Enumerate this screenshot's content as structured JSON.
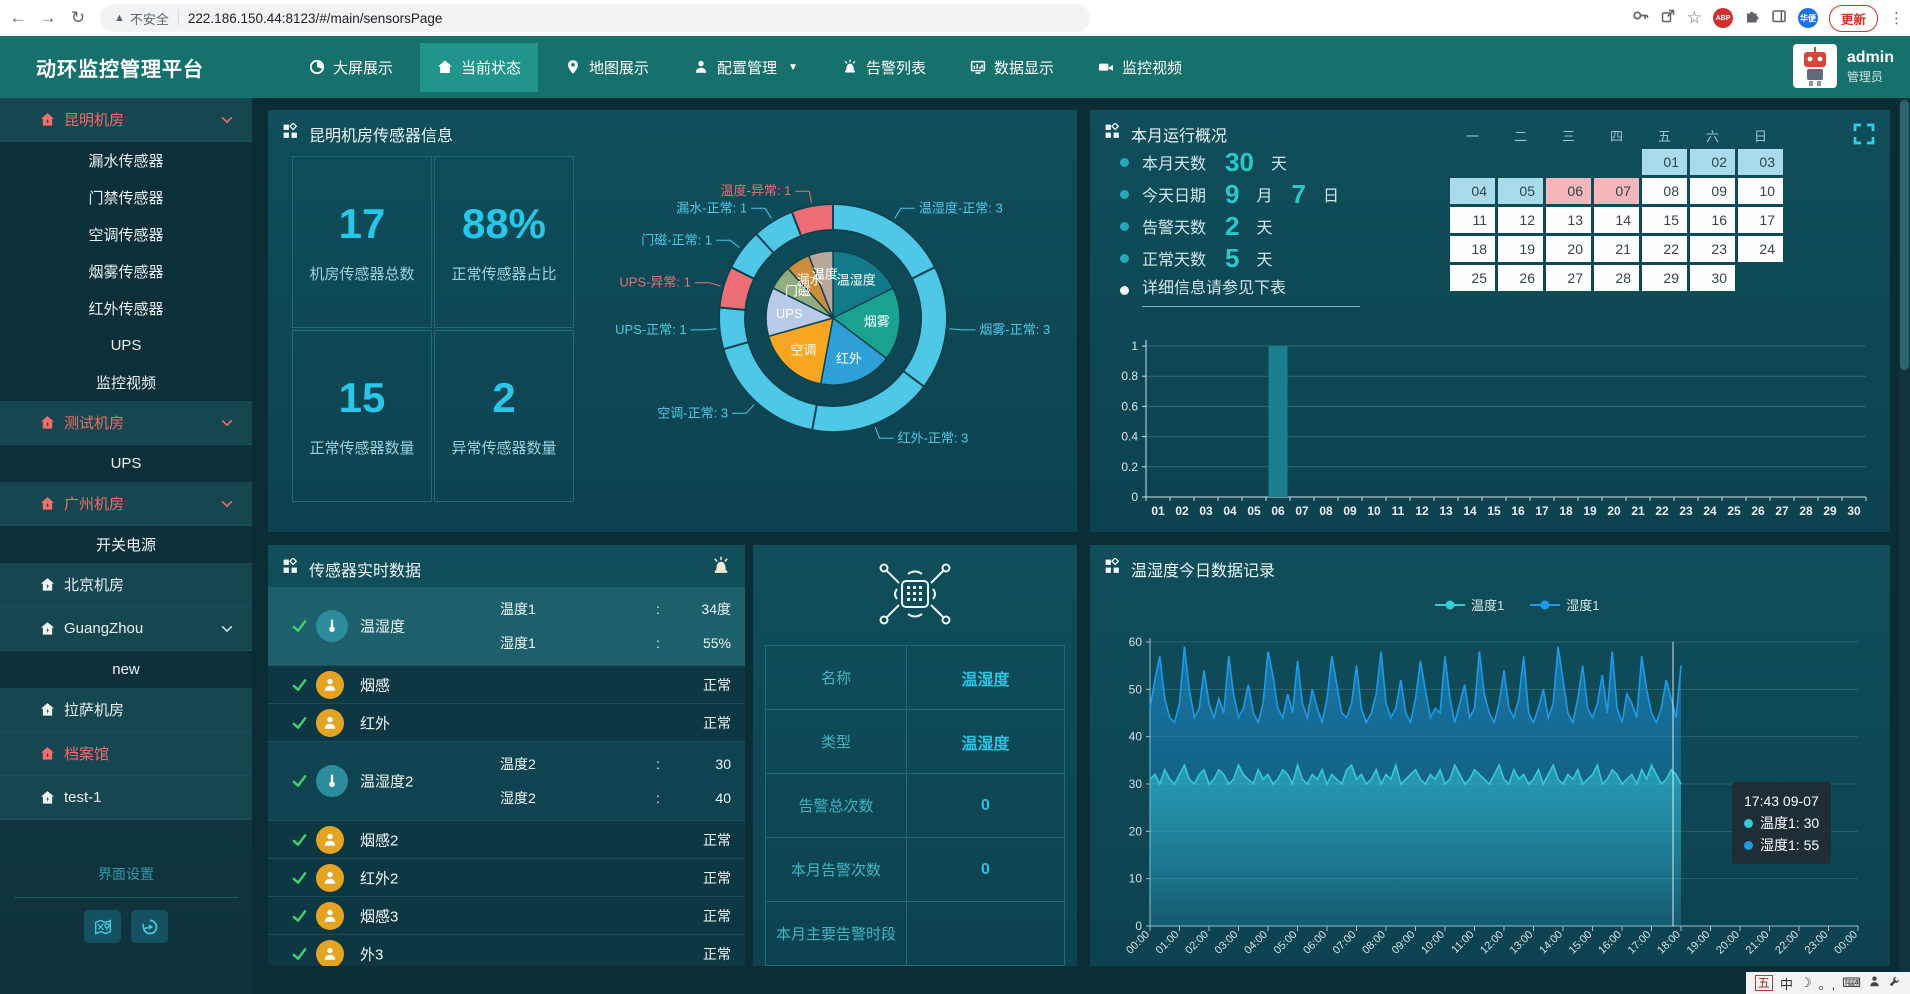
{
  "browser": {
    "back": "←",
    "forward": "→",
    "reload": "↻",
    "warning": "▲",
    "not_secure": "不安全",
    "url": "222.186.150.44:8123/#/main/sensorsPage",
    "star": "☆",
    "abp": "ABP",
    "lang": "华便",
    "update": "更新",
    "menu": "⋮"
  },
  "nav": {
    "title": "动环监控管理平台",
    "items": [
      {
        "label": "大屏展示",
        "icon": "pie"
      },
      {
        "label": "当前状态",
        "icon": "home",
        "active": true
      },
      {
        "label": "地图展示",
        "icon": "pin"
      },
      {
        "label": "配置管理",
        "icon": "person",
        "caret": true
      },
      {
        "label": "告警列表",
        "icon": "siren"
      },
      {
        "label": "数据显示",
        "icon": "chart"
      },
      {
        "label": "监控视频",
        "icon": "camera"
      }
    ],
    "user": {
      "name": "admin",
      "role": "管理员"
    }
  },
  "sidebar": {
    "groups": [
      {
        "label": "昆明机房",
        "alert": true,
        "chevron": true,
        "children": [
          "漏水传感器",
          "门禁传感器",
          "空调传感器",
          "烟雾传感器",
          "红外传感器",
          "UPS",
          "监控视频"
        ]
      },
      {
        "label": "测试机房",
        "alert": true,
        "chevron": true,
        "children": [
          "UPS"
        ]
      },
      {
        "label": "广州机房",
        "alert": true,
        "chevron": true,
        "children": [
          "开关电源"
        ]
      },
      {
        "label": "北京机房",
        "alert": false,
        "children": []
      },
      {
        "label": "GuangZhou",
        "alert": false,
        "chevron": true,
        "children": [
          "new"
        ]
      },
      {
        "label": "拉萨机房",
        "alert": false,
        "children": []
      },
      {
        "label": "档案馆",
        "alert": true,
        "children": []
      },
      {
        "label": "test-1",
        "alert": false,
        "children": []
      }
    ],
    "footer_label": "界面设置"
  },
  "panels": {
    "sensor_info": {
      "title": "昆明机房传感器信息",
      "stats": [
        {
          "value": "17",
          "label": "机房传感器总数"
        },
        {
          "value": "88%",
          "label": "正常传感器占比"
        },
        {
          "value": "15",
          "label": "正常传感器数量"
        },
        {
          "value": "2",
          "label": "异常传感器数量"
        }
      ]
    },
    "month_overview": {
      "title": "本月运行概况",
      "bullets": [
        [
          {
            "t": "label",
            "v": "本月天数"
          },
          {
            "t": "num",
            "v": "30"
          },
          {
            "t": "label",
            "v": "天"
          }
        ],
        [
          {
            "t": "label",
            "v": "今天日期"
          },
          {
            "t": "num",
            "v": "9"
          },
          {
            "t": "label",
            "v": "月"
          },
          {
            "t": "num",
            "v": "7"
          },
          {
            "t": "label",
            "v": "日"
          }
        ],
        [
          {
            "t": "label",
            "v": "告警天数"
          },
          {
            "t": "num",
            "v": "2"
          },
          {
            "t": "label",
            "v": "天"
          }
        ],
        [
          {
            "t": "label",
            "v": "正常天数"
          },
          {
            "t": "num",
            "v": "5"
          },
          {
            "t": "label",
            "v": "天"
          }
        ],
        [
          {
            "t": "link",
            "v": "详细信息请参见下表"
          }
        ]
      ],
      "calendar": {
        "headers": [
          "一",
          "二",
          "三",
          "四",
          "五",
          "六",
          "日"
        ],
        "colors": {
          "normal": "#aadbea",
          "alarm": "#f4b6ba",
          "default": "#fdfdfd"
        },
        "weeks": [
          [
            {
              "d": "",
              "s": "e"
            },
            {
              "d": "",
              "s": "e"
            },
            {
              "d": "",
              "s": "e"
            },
            {
              "d": "",
              "s": "e"
            },
            {
              "d": "01",
              "s": "n"
            },
            {
              "d": "02",
              "s": "n"
            },
            {
              "d": "03",
              "s": "n"
            }
          ],
          [
            {
              "d": "04",
              "s": "n"
            },
            {
              "d": "05",
              "s": "n"
            },
            {
              "d": "06",
              "s": "a"
            },
            {
              "d": "07",
              "s": "a"
            },
            {
              "d": "08",
              "s": "d"
            },
            {
              "d": "09",
              "s": "d"
            },
            {
              "d": "10",
              "s": "d"
            }
          ],
          [
            {
              "d": "11",
              "s": "d"
            },
            {
              "d": "12",
              "s": "d"
            },
            {
              "d": "13",
              "s": "d"
            },
            {
              "d": "14",
              "s": "d"
            },
            {
              "d": "15",
              "s": "d"
            },
            {
              "d": "16",
              "s": "d"
            },
            {
              "d": "17",
              "s": "d"
            }
          ],
          [
            {
              "d": "18",
              "s": "d"
            },
            {
              "d": "19",
              "s": "d"
            },
            {
              "d": "20",
              "s": "d"
            },
            {
              "d": "21",
              "s": "d"
            },
            {
              "d": "22",
              "s": "d"
            },
            {
              "d": "23",
              "s": "d"
            },
            {
              "d": "24",
              "s": "d"
            }
          ],
          [
            {
              "d": "25",
              "s": "d"
            },
            {
              "d": "26",
              "s": "d"
            },
            {
              "d": "27",
              "s": "d"
            },
            {
              "d": "28",
              "s": "d"
            },
            {
              "d": "29",
              "s": "d"
            },
            {
              "d": "30",
              "s": "d"
            },
            {
              "d": "",
              "s": "e"
            }
          ]
        ]
      }
    },
    "realtime": {
      "title": "传感器实时数据",
      "rows": [
        {
          "name": "温湿度",
          "icon": "thermo",
          "highlight": true,
          "readings": [
            {
              "label": "温度1",
              "value": "34度"
            },
            {
              "label": "湿度1",
              "value": "55%"
            }
          ]
        },
        {
          "name": "烟感",
          "icon": "person",
          "status": "正常"
        },
        {
          "name": "红外",
          "icon": "person",
          "status": "正常"
        },
        {
          "name": "温湿度2",
          "icon": "thermo",
          "readings": [
            {
              "label": "温度2",
              "value": "30"
            },
            {
              "label": "湿度2",
              "value": "40"
            }
          ]
        },
        {
          "name": "烟感2",
          "icon": "person",
          "status": "正常"
        },
        {
          "name": "红外2",
          "icon": "person",
          "status": "正常"
        },
        {
          "name": "烟感3",
          "icon": "person",
          "status": "正常"
        },
        {
          "name": "外3",
          "icon": "person",
          "status": "正常"
        }
      ]
    },
    "detail": {
      "rows": [
        {
          "label": "名称",
          "value": "温湿度"
        },
        {
          "label": "类型",
          "value": "温湿度"
        },
        {
          "label": "告警总次数",
          "value": "0"
        },
        {
          "label": "本月告警次数",
          "value": "0"
        },
        {
          "label": "本月主要告警时段",
          "value": ""
        }
      ]
    },
    "today": {
      "title": "温湿度今日数据记录",
      "tooltip": {
        "time": "17:43 09-07",
        "items": [
          {
            "name": "温度1",
            "value": "30",
            "color": "#38c8d8"
          },
          {
            "name": "湿度1",
            "value": "55",
            "color": "#1f9ae8"
          }
        ]
      }
    }
  },
  "ime": [
    "五",
    "中",
    "☽",
    "。,",
    "⌨"
  ],
  "chart_data": [
    {
      "id": "sensor_type_donut",
      "type": "pie",
      "title": "昆明机房传感器信息",
      "inner_slices": [
        {
          "name": "温湿度",
          "value": 3,
          "color": "#137a8a"
        },
        {
          "name": "烟雾",
          "value": 3,
          "color": "#18a28f"
        },
        {
          "name": "红外",
          "value": 3,
          "color": "#2f9fd8"
        },
        {
          "name": "空调",
          "value": 3,
          "color": "#f6a620"
        },
        {
          "name": "UPS",
          "value": 2,
          "color": "#b9c9e8"
        },
        {
          "name": "门磁",
          "value": 1,
          "color": "#94ad7e"
        },
        {
          "name": "漏水",
          "value": 1,
          "color": "#cd8d3a"
        },
        {
          "name": "温度",
          "value": 1,
          "color": "#b8a79a"
        }
      ],
      "outer_ring": [
        {
          "label": "温湿度-正常: 3",
          "value": 3,
          "status": "normal"
        },
        {
          "label": "烟雾-正常: 3",
          "value": 3,
          "status": "normal"
        },
        {
          "label": "红外-正常: 3",
          "value": 3,
          "status": "normal"
        },
        {
          "label": "空调-正常: 3",
          "value": 3,
          "status": "normal"
        },
        {
          "label": "UPS-正常: 1",
          "value": 1,
          "status": "normal"
        },
        {
          "label": "UPS-异常: 1",
          "value": 1,
          "status": "abnormal"
        },
        {
          "label": "门磁-正常: 1",
          "value": 1,
          "status": "normal"
        },
        {
          "label": "漏水-正常: 1",
          "value": 1,
          "status": "normal"
        },
        {
          "label": "温度-异常: 1",
          "value": 1,
          "status": "abnormal"
        }
      ],
      "ring_colors": {
        "normal": "#4fc8e8",
        "abnormal": "#ee6e76"
      }
    },
    {
      "id": "month_alarm_bars",
      "type": "bar",
      "categories": [
        "01",
        "02",
        "03",
        "04",
        "05",
        "06",
        "07",
        "08",
        "09",
        "10",
        "11",
        "12",
        "13",
        "14",
        "15",
        "16",
        "17",
        "18",
        "19",
        "20",
        "21",
        "22",
        "23",
        "24",
        "25",
        "26",
        "27",
        "28",
        "29",
        "30"
      ],
      "values": [
        0,
        0,
        0,
        0,
        0,
        1,
        0,
        0,
        0,
        0,
        0,
        0,
        0,
        0,
        0,
        0,
        0,
        0,
        0,
        0,
        0,
        0,
        0,
        0,
        0,
        0,
        0,
        0,
        0,
        0
      ],
      "ylim": [
        0,
        1
      ],
      "yticks": [
        1,
        0.8,
        0.6,
        0.4,
        0.2,
        0
      ],
      "bar_color": "#1a7f8e"
    },
    {
      "id": "today_temp_humidity",
      "type": "line",
      "interval_minutes": 10,
      "start": "00:00",
      "end": "18:00",
      "ylim": [
        0,
        60
      ],
      "yticks": [
        0,
        10,
        20,
        30,
        40,
        50,
        60
      ],
      "x_tick_labels": [
        "00:00",
        "01:00",
        "02:00",
        "03:00",
        "04:00",
        "05:00",
        "06:00",
        "07:00",
        "08:00",
        "09:00",
        "10:00",
        "11:00",
        "12:00",
        "13:00",
        "14:00",
        "15:00",
        "16:00",
        "17:00",
        "18:00",
        "19:00",
        "20:00",
        "21:00",
        "22:00",
        "23:00",
        "00:00"
      ],
      "series": [
        {
          "name": "温度1",
          "color": "#38c8d8",
          "values": [
            31,
            32,
            30,
            33,
            31,
            30,
            32,
            34,
            31,
            30,
            32,
            33,
            30,
            31,
            33,
            32,
            30,
            31,
            34,
            32,
            31,
            30,
            33,
            31,
            32,
            30,
            31,
            33,
            32,
            30,
            34,
            31,
            30,
            32,
            31,
            33,
            30,
            32,
            31,
            30,
            33,
            34,
            31,
            32,
            30,
            31,
            33,
            30,
            32,
            31,
            34,
            30,
            31,
            32,
            33,
            31,
            30,
            32,
            31,
            33,
            30,
            31,
            34,
            32,
            30,
            31,
            33,
            32,
            31,
            30,
            32,
            34,
            31,
            30,
            33,
            31,
            32,
            30,
            31,
            33,
            30,
            32,
            34,
            31,
            30,
            32,
            31,
            33,
            30,
            31,
            32,
            34,
            30,
            31,
            33,
            32,
            30,
            31,
            32,
            30,
            33,
            31,
            34,
            32,
            30,
            31,
            33,
            32,
            30
          ]
        },
        {
          "name": "湿度1",
          "color": "#1f9ae8",
          "values": [
            46,
            52,
            57,
            48,
            44,
            43,
            47,
            59,
            50,
            44,
            46,
            54,
            47,
            44,
            48,
            45,
            57,
            49,
            44,
            46,
            51,
            45,
            43,
            47,
            58,
            53,
            46,
            44,
            49,
            45,
            56,
            47,
            44,
            50,
            46,
            43,
            48,
            57,
            51,
            45,
            44,
            47,
            55,
            46,
            43,
            45,
            49,
            58,
            47,
            44,
            46,
            52,
            45,
            43,
            48,
            56,
            50,
            44,
            46,
            45,
            57,
            48,
            43,
            47,
            51,
            44,
            46,
            58,
            49,
            45,
            43,
            47,
            54,
            46,
            44,
            48,
            57,
            45,
            43,
            46,
            50,
            44,
            47,
            59,
            52,
            45,
            43,
            48,
            55,
            46,
            44,
            47,
            53,
            45,
            58,
            46,
            43,
            49,
            47,
            44,
            57,
            50,
            45,
            43,
            46,
            52,
            48,
            44,
            55
          ]
        }
      ]
    }
  ]
}
